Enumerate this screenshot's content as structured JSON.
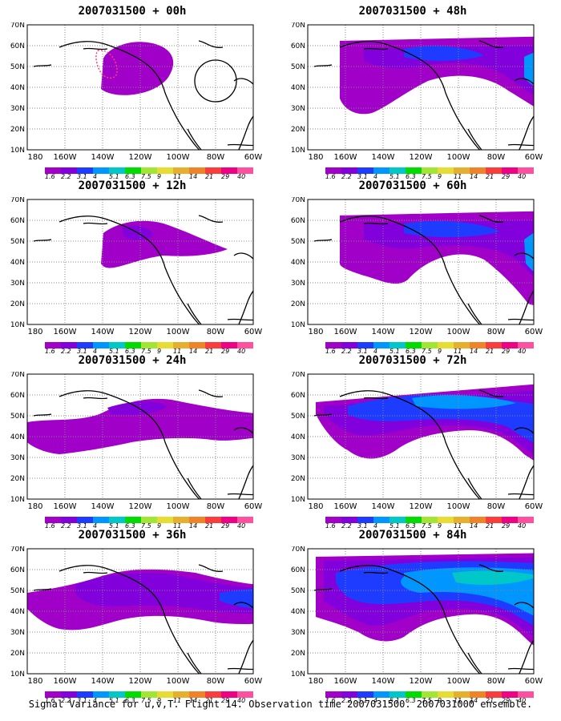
{
  "panels": [
    {
      "id": "p00",
      "title": "2007031500 + 00h"
    },
    {
      "id": "p48",
      "title": "2007031500 + 48h"
    },
    {
      "id": "p12",
      "title": "2007031500 + 12h"
    },
    {
      "id": "p60",
      "title": "2007031500 + 60h"
    },
    {
      "id": "p24",
      "title": "2007031500 + 24h"
    },
    {
      "id": "p72",
      "title": "2007031500 + 72h"
    },
    {
      "id": "p36",
      "title": "2007031500 + 36h"
    },
    {
      "id": "p84",
      "title": "2007031500 + 84h"
    }
  ],
  "axes": {
    "lat_labels": [
      "70N",
      "60N",
      "50N",
      "40N",
      "30N",
      "20N",
      "10N"
    ],
    "lon_labels": [
      "180",
      "160W",
      "140W",
      "120W",
      "100W",
      "80W",
      "60W"
    ]
  },
  "colorbar": {
    "labels": [
      "1.6",
      "2.2",
      "3.1",
      "4",
      "5.1",
      "6.3",
      "7.5",
      "9",
      "11",
      "14",
      "21",
      "29",
      "40"
    ],
    "colors": [
      "#a000c8",
      "#8200dc",
      "#1e3cff",
      "#0096ff",
      "#00c8c8",
      "#00dc00",
      "#a0e632",
      "#e6dc32",
      "#e6af2d",
      "#f08228",
      "#fa3c3c",
      "#f00082",
      "#ff50a0"
    ]
  },
  "caption": "Signal Variance for u,v,T. Flight 14. Observation time 2007031500. 2007031000 ensemble."
}
